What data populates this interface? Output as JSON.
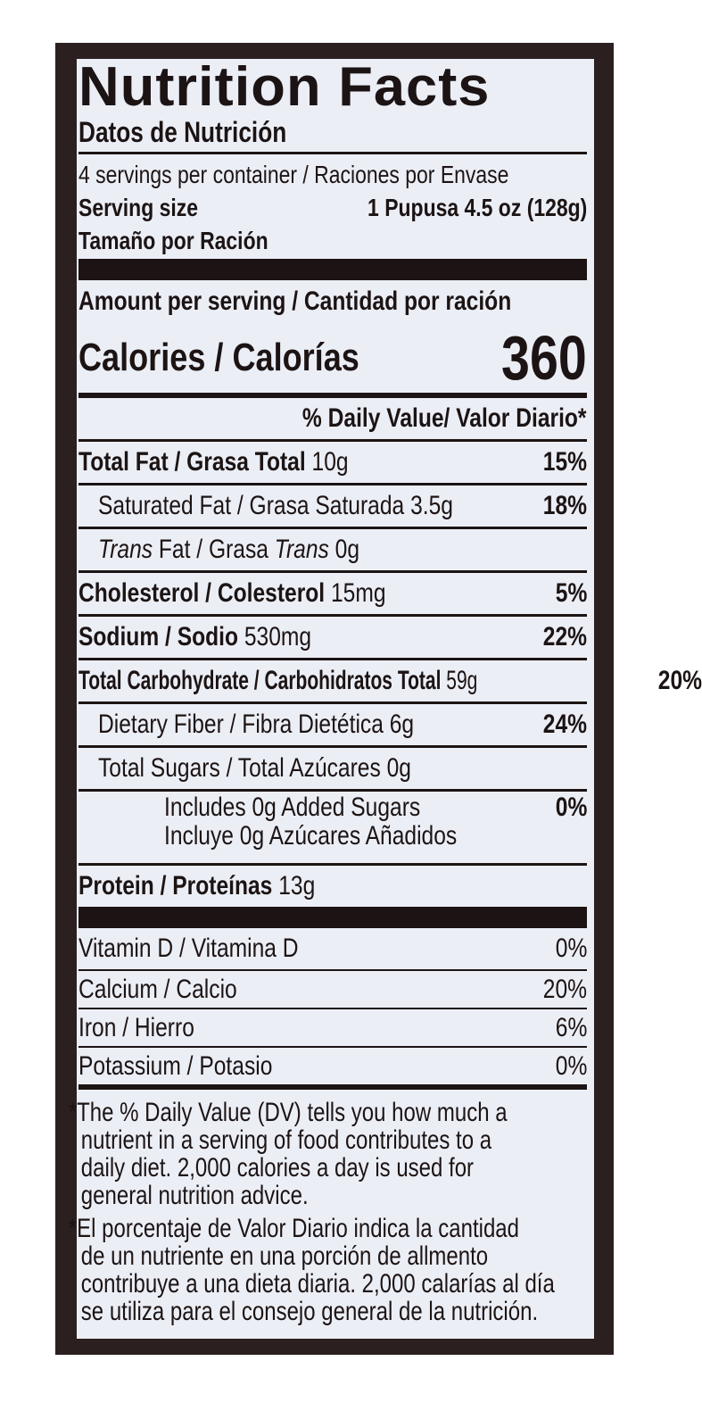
{
  "header": {
    "title": "Nutrition Facts",
    "subtitle": "Datos de Nutrición"
  },
  "servings": {
    "per_container": "4 servings per container / Raciones por Envase",
    "size_label": "Serving size",
    "size_value": "1 Pupusa 4.5 oz (128g)",
    "size_label_es": "Tamaño por Ración"
  },
  "amount_label": "Amount per serving / Cantidad por ración",
  "calories": {
    "label": "Calories / Calorías",
    "value": "360"
  },
  "dv_header": "% Daily Value/ Valor Diario*",
  "nutrients": [
    {
      "label": "Total Fat / Grasa Total",
      "amount": "10g",
      "dv": "15%"
    },
    {
      "label": "Saturated Fat / Grasa Saturada",
      "amount": "3.5g",
      "dv": "18%"
    },
    {
      "label_a": "Trans",
      "label_b": " Fat / Grasa ",
      "label_c": "Trans",
      "amount": "0g"
    },
    {
      "label": "Cholesterol / Colesterol",
      "amount": "15mg",
      "dv": "5%"
    },
    {
      "label": "Sodium / Sodio",
      "amount": "530mg",
      "dv": "22%"
    },
    {
      "label": "Total Carbohydrate / Carbohidratos Total",
      "amount": "59g",
      "dv": "20%"
    },
    {
      "label": "Dietary Fiber / Fibra Dietética",
      "amount": "6g",
      "dv": "24%"
    },
    {
      "label": "Total Sugars / Total Azúcares",
      "amount": "0g"
    },
    {
      "line1": "Includes 0g Added Sugars",
      "line2": "Incluye 0g Azúcares Añadidos",
      "dv": "0%"
    },
    {
      "label": "Protein / Proteínas",
      "amount": "13g"
    }
  ],
  "vitamins": [
    {
      "label": "Vitamin D / Vitamina D",
      "dv": "0%"
    },
    {
      "label": "Calcium / Calcio",
      "dv": "20%"
    },
    {
      "label": "Iron / Hierro",
      "dv": "6%"
    },
    {
      "label": "Potassium / Potasio",
      "dv": "0%"
    }
  ],
  "footnotes": {
    "en": [
      "*The % Daily Value (DV) tells you how much a",
      "nutrient in a serving of food contributes to a",
      "daily diet. 2,000 calories a day is used for",
      "general nutrition advice."
    ],
    "es": [
      "*El porcentaje de Valor Diario indica la cantidad",
      "de un nutriente en una porción de allmento",
      "contribuye a una dieta diaria. 2,000 calarías al día",
      "se utiliza para el consejo general de la nutrición."
    ]
  },
  "colors": {
    "ink": "#1c1414",
    "frame": "#2b1f1f",
    "panel": "#eceef6"
  }
}
